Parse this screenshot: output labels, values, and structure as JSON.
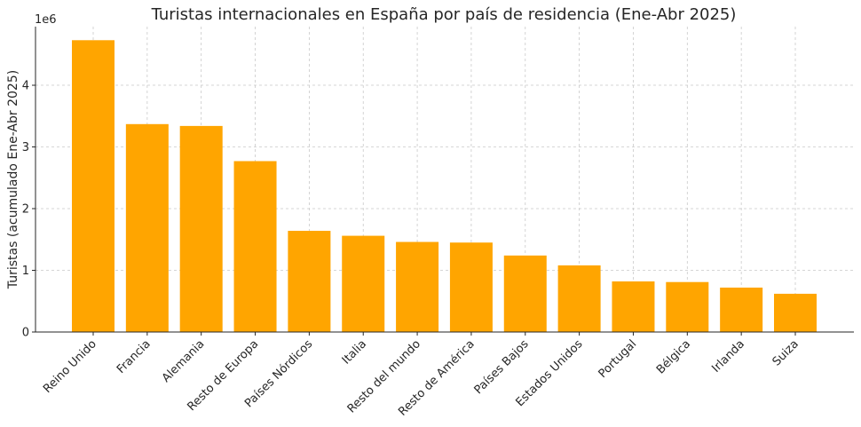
{
  "chart_data": {
    "type": "bar",
    "title": "Turistas internacionales en España por país de residencia (Ene-Abr 2025)",
    "ylabel": "Turistas (acumulado Ene-Abr 2025)",
    "xlabel": "",
    "y_offset_label": "1e6",
    "y_multiplier": 1000000,
    "ylim": [
      0,
      4950000
    ],
    "yticks": [
      0,
      1000000,
      2000000,
      3000000,
      4000000
    ],
    "ytick_labels": [
      "0",
      "1",
      "2",
      "3",
      "4"
    ],
    "grid": true,
    "bar_color": "#FFA500",
    "categories": [
      "Reino Unido",
      "Francia",
      "Alemania",
      "Resto de Europa",
      "Países Nórdicos",
      "Italia",
      "Resto del mundo",
      "Resto de América",
      "Países Bajos",
      "Estados Unidos",
      "Portugal",
      "Bélgica",
      "Irlanda",
      "Suiza"
    ],
    "values": [
      4730000,
      3370000,
      3340000,
      2770000,
      1640000,
      1560000,
      1460000,
      1450000,
      1240000,
      1080000,
      820000,
      810000,
      720000,
      620000
    ]
  }
}
